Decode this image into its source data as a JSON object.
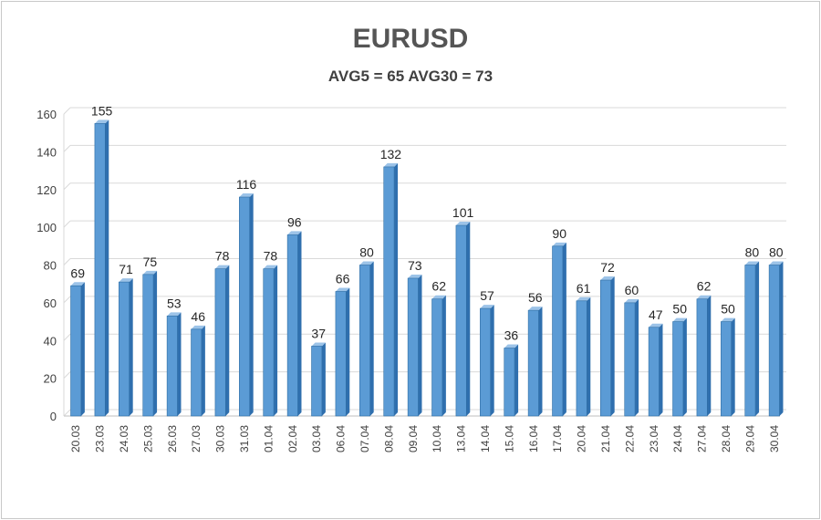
{
  "chart_data": {
    "type": "bar",
    "title": "EURUSD",
    "subtitle": "AVG5 = 65 AVG30 = 73",
    "categories": [
      "20.03",
      "23.03",
      "24.03",
      "25.03",
      "26.03",
      "27.03",
      "30.03",
      "31.03",
      "01.04",
      "02.04",
      "03.04",
      "06.04",
      "07.04",
      "08.04",
      "09.04",
      "10.04",
      "13.04",
      "14.04",
      "15.04",
      "16.04",
      "17.04",
      "20.04",
      "21.04",
      "22.04",
      "23.04",
      "24.04",
      "27.04",
      "28.04",
      "29.04",
      "30.04"
    ],
    "values": [
      69,
      155,
      71,
      75,
      53,
      46,
      78,
      116,
      78,
      96,
      37,
      66,
      80,
      132,
      73,
      62,
      101,
      57,
      36,
      56,
      90,
      61,
      72,
      60,
      47,
      50,
      62,
      50,
      80,
      80
    ],
    "yticks": [
      0,
      20,
      40,
      60,
      80,
      100,
      120,
      140,
      160
    ],
    "ylim": [
      0,
      160
    ],
    "grid": true,
    "legend": "none",
    "bar_color": "#5b9bd5",
    "bar_edge_color": "#2e6da4",
    "bar_side_color": "#2f6fae",
    "bar_top_color": "#9cc3e8"
  }
}
